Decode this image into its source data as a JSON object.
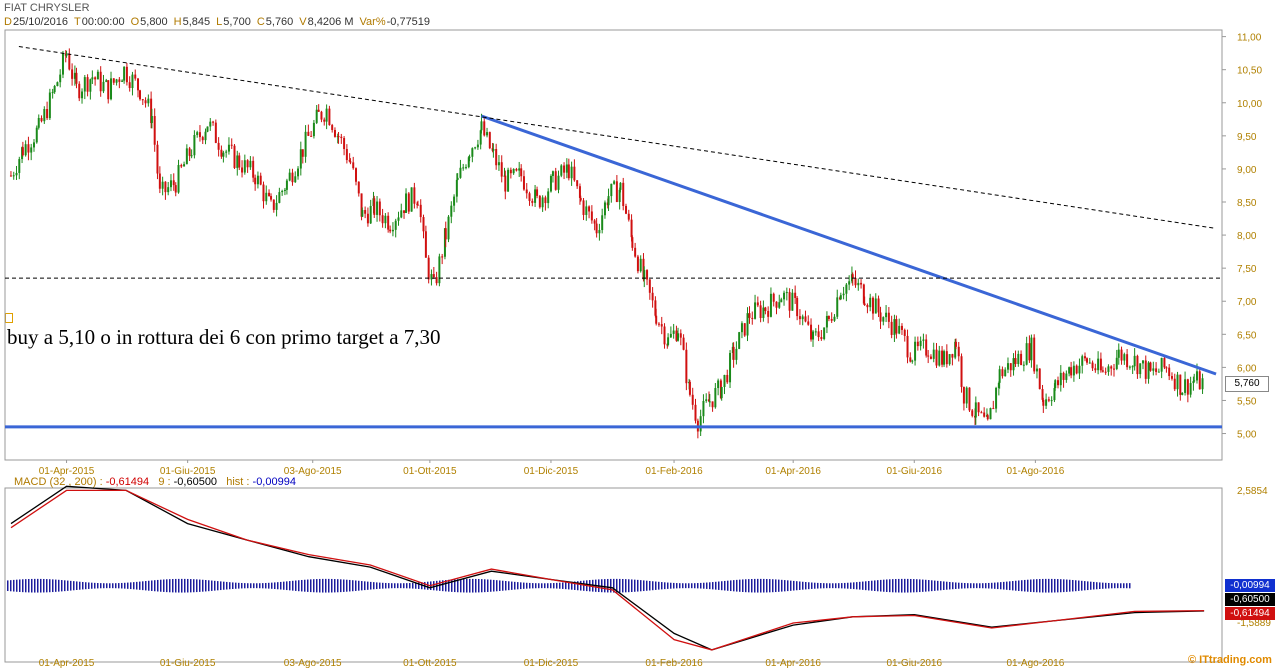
{
  "header": {
    "title": "FIAT CHRYSLER",
    "fields": [
      {
        "k": "D",
        "v": "25/10/2016"
      },
      {
        "k": "T",
        "v": "00:00:00"
      },
      {
        "k": "O",
        "v": "5,800"
      },
      {
        "k": "H",
        "v": "5,845"
      },
      {
        "k": "L",
        "v": "5,700"
      },
      {
        "k": "C",
        "v": "5,760"
      },
      {
        "k": "V",
        "v": "8,4206 M"
      },
      {
        "k": "Var%",
        "v": "-0,77519"
      }
    ]
  },
  "annotation": "buy a 5,10 o in rottura dei 6 con primo target a 7,30",
  "price_badge": "5,760",
  "macd": {
    "label": "MACD",
    "params": "(32 , 200) :",
    "macd_value": "-0,61494",
    "signal_label": "9 :",
    "signal_value": "-0,60500",
    "hist_label": "hist :",
    "hist_value": "-0,00994",
    "badges": [
      "-0,00994",
      "-0,60500",
      "-0,61494"
    ]
  },
  "credit": "© ITtrading.com",
  "colors": {
    "up": "#1a8a1a",
    "down": "#d01010",
    "trendline": "#3a66d6",
    "axis_text": "#b08000",
    "macd_line": "#000000",
    "signal_line": "#d01010",
    "histogram": "#1c1c9c"
  },
  "chart_data": [
    {
      "type": "candlestick",
      "title": "FIAT CHRYSLER",
      "x_ticks": [
        "01-Apr-2015",
        "01-Giu-2015",
        "03-Ago-2015",
        "01-Ott-2015",
        "01-Dic-2015",
        "01-Feb-2016",
        "01-Apr-2016",
        "01-Giu-2016",
        "01-Ago-2016"
      ],
      "y_ticks": [
        "11,00",
        "10,50",
        "10,00",
        "9,50",
        "9,00",
        "8,50",
        "8,00",
        "7,50",
        "7,00",
        "6,50",
        "6,00",
        "5,50",
        "5,00"
      ],
      "ylim": [
        4.6,
        11.1
      ],
      "close_path": [
        {
          "x": "2015-03-04",
          "y": 8.9
        },
        {
          "x": "2015-03-10",
          "y": 9.3
        },
        {
          "x": "2015-03-18",
          "y": 9.6
        },
        {
          "x": "2015-03-26",
          "y": 10.2
        },
        {
          "x": "2015-04-01",
          "y": 10.75
        },
        {
          "x": "2015-04-06",
          "y": 10.2
        },
        {
          "x": "2015-04-14",
          "y": 10.4
        },
        {
          "x": "2015-04-22",
          "y": 10.2
        },
        {
          "x": "2015-04-30",
          "y": 10.5
        },
        {
          "x": "2015-05-08",
          "y": 10.2
        },
        {
          "x": "2015-05-14",
          "y": 9.8
        },
        {
          "x": "2015-05-18",
          "y": 8.6
        },
        {
          "x": "2015-05-26",
          "y": 8.8
        },
        {
          "x": "2015-06-03",
          "y": 9.3
        },
        {
          "x": "2015-06-11",
          "y": 9.7
        },
        {
          "x": "2015-06-19",
          "y": 9.3
        },
        {
          "x": "2015-06-27",
          "y": 9.1
        },
        {
          "x": "2015-07-05",
          "y": 8.9
        },
        {
          "x": "2015-07-13",
          "y": 8.4
        },
        {
          "x": "2015-07-21",
          "y": 8.8
        },
        {
          "x": "2015-07-29",
          "y": 9.3
        },
        {
          "x": "2015-08-06",
          "y": 9.8
        },
        {
          "x": "2015-08-10",
          "y": 9.9
        },
        {
          "x": "2015-08-16",
          "y": 9.5
        },
        {
          "x": "2015-08-22",
          "y": 9.1
        },
        {
          "x": "2015-08-28",
          "y": 8.3
        },
        {
          "x": "2015-09-03",
          "y": 8.4
        },
        {
          "x": "2015-09-11",
          "y": 8.2
        },
        {
          "x": "2015-09-19",
          "y": 8.5
        },
        {
          "x": "2015-09-25",
          "y": 8.6
        },
        {
          "x": "2015-09-29",
          "y": 7.6
        },
        {
          "x": "2015-10-03",
          "y": 7.2
        },
        {
          "x": "2015-10-09",
          "y": 8.0
        },
        {
          "x": "2015-10-15",
          "y": 8.8
        },
        {
          "x": "2015-10-21",
          "y": 9.3
        },
        {
          "x": "2015-10-27",
          "y": 9.6
        },
        {
          "x": "2015-11-02",
          "y": 9.2
        },
        {
          "x": "2015-11-08",
          "y": 8.8
        },
        {
          "x": "2015-11-16",
          "y": 8.9
        },
        {
          "x": "2015-11-24",
          "y": 8.5
        },
        {
          "x": "2015-12-02",
          "y": 8.8
        },
        {
          "x": "2015-12-10",
          "y": 9.0
        },
        {
          "x": "2015-12-16",
          "y": 8.5
        },
        {
          "x": "2015-12-24",
          "y": 8.1
        },
        {
          "x": "2015-12-30",
          "y": 8.6
        },
        {
          "x": "2016-01-05",
          "y": 8.7
        },
        {
          "x": "2016-01-11",
          "y": 7.9
        },
        {
          "x": "2016-01-17",
          "y": 7.3
        },
        {
          "x": "2016-01-23",
          "y": 6.8
        },
        {
          "x": "2016-01-29",
          "y": 6.4
        },
        {
          "x": "2016-02-03",
          "y": 6.6
        },
        {
          "x": "2016-02-09",
          "y": 5.6
        },
        {
          "x": "2016-02-13",
          "y": 5.2
        },
        {
          "x": "2016-02-19",
          "y": 5.5
        },
        {
          "x": "2016-02-25",
          "y": 5.7
        },
        {
          "x": "2016-03-02",
          "y": 6.2
        },
        {
          "x": "2016-03-10",
          "y": 6.8
        },
        {
          "x": "2016-03-18",
          "y": 6.9
        },
        {
          "x": "2016-03-26",
          "y": 7.1
        },
        {
          "x": "2016-04-03",
          "y": 6.9
        },
        {
          "x": "2016-04-11",
          "y": 6.4
        },
        {
          "x": "2016-04-19",
          "y": 6.7
        },
        {
          "x": "2016-04-25",
          "y": 7.2
        },
        {
          "x": "2016-05-01",
          "y": 7.3
        },
        {
          "x": "2016-05-07",
          "y": 7.1
        },
        {
          "x": "2016-05-15",
          "y": 6.8
        },
        {
          "x": "2016-05-23",
          "y": 6.6
        },
        {
          "x": "2016-05-31",
          "y": 6.2
        },
        {
          "x": "2016-06-08",
          "y": 6.3
        },
        {
          "x": "2016-06-16",
          "y": 6.1
        },
        {
          "x": "2016-06-22",
          "y": 6.4
        },
        {
          "x": "2016-06-26",
          "y": 5.6
        },
        {
          "x": "2016-07-02",
          "y": 5.3
        },
        {
          "x": "2016-07-08",
          "y": 5.1
        },
        {
          "x": "2016-07-14",
          "y": 5.9
        },
        {
          "x": "2016-07-22",
          "y": 6.1
        },
        {
          "x": "2016-07-30",
          "y": 6.3
        },
        {
          "x": "2016-08-05",
          "y": 5.5
        },
        {
          "x": "2016-08-11",
          "y": 5.7
        },
        {
          "x": "2016-08-19",
          "y": 6.0
        },
        {
          "x": "2016-08-27",
          "y": 6.1
        },
        {
          "x": "2016-09-04",
          "y": 5.9
        },
        {
          "x": "2016-09-12",
          "y": 6.2
        },
        {
          "x": "2016-09-20",
          "y": 6.1
        },
        {
          "x": "2016-09-28",
          "y": 5.9
        },
        {
          "x": "2016-10-06",
          "y": 6.0
        },
        {
          "x": "2016-10-14",
          "y": 5.7
        },
        {
          "x": "2016-10-20",
          "y": 5.8
        },
        {
          "x": "2016-10-25",
          "y": 5.76
        }
      ],
      "lines": [
        {
          "style": "solid-blue",
          "from": {
            "x": "2015-10-27",
            "y": 9.8
          },
          "to": {
            "x": "2016-10-31",
            "y": 5.9
          }
        },
        {
          "style": "solid-blue-horizontal",
          "y": 5.1
        },
        {
          "style": "dashed-horizontal",
          "y": 7.35
        },
        {
          "style": "dashed",
          "from": {
            "x": "2015-03-08",
            "y": 10.85
          },
          "to": {
            "x": "2016-10-31",
            "y": 8.1
          }
        }
      ]
    },
    {
      "type": "line",
      "title": "MACD",
      "y_ticks": [
        "2,5854",
        "-1,5889"
      ],
      "series": [
        {
          "name": "MACD",
          "points": [
            {
              "x": "2015-03-04",
              "y": 1.5
            },
            {
              "x": "2015-04-01",
              "y": 2.4
            },
            {
              "x": "2015-05-01",
              "y": 2.3
            },
            {
              "x": "2015-06-01",
              "y": 1.5
            },
            {
              "x": "2015-07-01",
              "y": 1.1
            },
            {
              "x": "2015-08-01",
              "y": 0.7
            },
            {
              "x": "2015-09-01",
              "y": 0.45
            },
            {
              "x": "2015-10-01",
              "y": -0.05
            },
            {
              "x": "2015-11-01",
              "y": 0.35
            },
            {
              "x": "2015-12-01",
              "y": 0.15
            },
            {
              "x": "2016-01-01",
              "y": -0.05
            },
            {
              "x": "2016-02-01",
              "y": -1.15
            },
            {
              "x": "2016-02-20",
              "y": -1.55
            },
            {
              "x": "2016-04-01",
              "y": -0.95
            },
            {
              "x": "2016-05-01",
              "y": -0.75
            },
            {
              "x": "2016-06-01",
              "y": -0.7
            },
            {
              "x": "2016-07-10",
              "y": -1.0
            },
            {
              "x": "2016-08-10",
              "y": -0.85
            },
            {
              "x": "2016-09-20",
              "y": -0.65
            },
            {
              "x": "2016-10-25",
              "y": -0.61
            }
          ]
        },
        {
          "name": "Signal",
          "points": [
            {
              "x": "2015-03-04",
              "y": 1.4
            },
            {
              "x": "2015-04-01",
              "y": 2.3
            },
            {
              "x": "2015-05-01",
              "y": 2.3
            },
            {
              "x": "2015-06-01",
              "y": 1.6
            },
            {
              "x": "2015-07-01",
              "y": 1.1
            },
            {
              "x": "2015-08-01",
              "y": 0.75
            },
            {
              "x": "2015-09-01",
              "y": 0.5
            },
            {
              "x": "2015-10-01",
              "y": 0.0
            },
            {
              "x": "2015-11-01",
              "y": 0.4
            },
            {
              "x": "2015-12-01",
              "y": 0.15
            },
            {
              "x": "2016-01-01",
              "y": -0.1
            },
            {
              "x": "2016-02-01",
              "y": -1.3
            },
            {
              "x": "2016-02-20",
              "y": -1.55
            },
            {
              "x": "2016-04-01",
              "y": -0.9
            },
            {
              "x": "2016-05-01",
              "y": -0.75
            },
            {
              "x": "2016-06-01",
              "y": -0.72
            },
            {
              "x": "2016-07-10",
              "y": -1.02
            },
            {
              "x": "2016-08-10",
              "y": -0.85
            },
            {
              "x": "2016-09-20",
              "y": -0.62
            },
            {
              "x": "2016-10-25",
              "y": -0.6
            }
          ]
        }
      ],
      "histogram_note": "small bars around zero",
      "ylim": [
        -1.6,
        2.6
      ]
    }
  ]
}
